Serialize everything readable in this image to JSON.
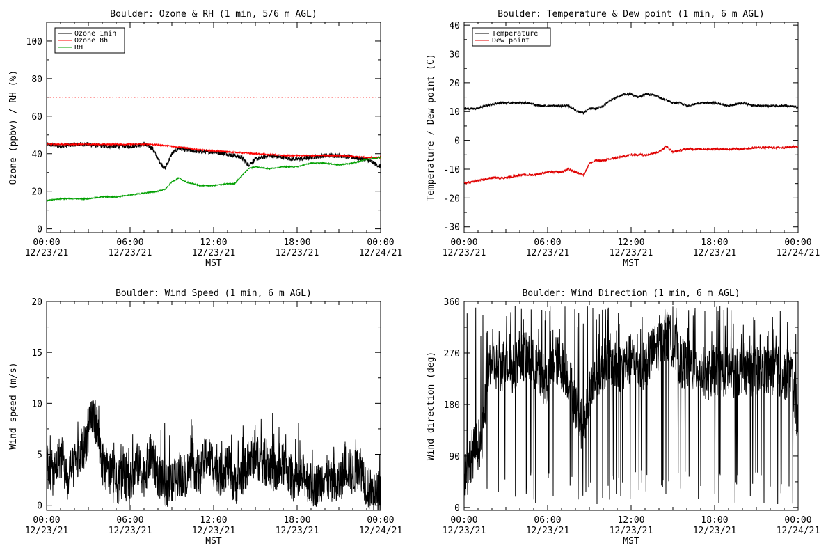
{
  "chart_data": [
    {
      "type": "line",
      "title": "Boulder: Ozone & RH (1 min, 5/6 m AGL)",
      "xlabel": "MST",
      "ylabel": "Ozone (ppbv) / RH (%)",
      "ylim": [
        -2,
        110
      ],
      "yticks": [
        0,
        20,
        40,
        60,
        80,
        100
      ],
      "xticks": [
        {
          "time": "00:00",
          "date": "12/23/21"
        },
        {
          "time": "06:00",
          "date": "12/23/21"
        },
        {
          "time": "12:00",
          "date": "12/23/21"
        },
        {
          "time": "18:00",
          "date": "12/23/21"
        },
        {
          "time": "00:00",
          "date": "12/24/21"
        }
      ],
      "xlim_hours": [
        0,
        24
      ],
      "legend_position": "top-left",
      "series": [
        {
          "name": "Ozone 1min",
          "color": "#000000",
          "x_hours": [
            0,
            1,
            2,
            3,
            4,
            5,
            6,
            7,
            7.6,
            8,
            8.5,
            9,
            9.5,
            10,
            11,
            12,
            13,
            14,
            14.5,
            15,
            16,
            17,
            18,
            19,
            20,
            21,
            22,
            23,
            23.5,
            24
          ],
          "values": [
            45,
            44,
            45,
            45,
            44,
            44,
            44,
            45,
            43,
            37,
            32,
            40,
            43,
            42,
            41,
            41,
            40,
            38,
            34,
            37,
            39,
            38,
            37,
            38,
            39,
            39,
            38,
            37,
            35,
            33
          ]
        },
        {
          "name": "Ozone 8h",
          "color": "#ff0000",
          "x_hours": [
            0,
            2,
            4,
            6,
            7.5,
            9,
            11,
            13,
            15,
            17,
            19,
            21,
            23,
            24
          ],
          "values": [
            45,
            45,
            45,
            45,
            45,
            44,
            42,
            41,
            40,
            39,
            39,
            39,
            38,
            38
          ]
        },
        {
          "name": "RH",
          "color": "#00a000",
          "x_hours": [
            0,
            1,
            2,
            3,
            4,
            5,
            6,
            7,
            8,
            8.5,
            9,
            9.5,
            10,
            10.5,
            11,
            12,
            13,
            13.5,
            14,
            14.5,
            15,
            16,
            17,
            18,
            19,
            20,
            21,
            22,
            23,
            24
          ],
          "values": [
            15,
            16,
            16,
            16,
            17,
            17,
            18,
            19,
            20,
            21,
            25,
            27,
            25,
            24,
            23,
            23,
            24,
            24,
            28,
            32,
            33,
            32,
            33,
            33,
            35,
            35,
            34,
            35,
            37,
            38
          ]
        },
        {
          "name": "",
          "color": "#ff0000",
          "style": "dotted",
          "x_hours": [
            0,
            24
          ],
          "values": [
            70,
            70
          ]
        }
      ]
    },
    {
      "type": "line",
      "title": "Boulder: Temperature & Dew point (1 min, 6 m AGL)",
      "xlabel": "MST",
      "ylabel": "Temperature / Dew point (C)",
      "ylim": [
        -32,
        41
      ],
      "yticks": [
        -30,
        -20,
        -10,
        0,
        10,
        20,
        30,
        40
      ],
      "xticks": [
        {
          "time": "00:00",
          "date": "12/23/21"
        },
        {
          "time": "06:00",
          "date": "12/23/21"
        },
        {
          "time": "12:00",
          "date": "12/23/21"
        },
        {
          "time": "18:00",
          "date": "12/23/21"
        },
        {
          "time": "00:00",
          "date": "12/24/21"
        }
      ],
      "xlim_hours": [
        0,
        24
      ],
      "legend_position": "top-left",
      "series": [
        {
          "name": "Temperature",
          "color": "#000000",
          "x_hours": [
            0,
            0.8,
            1.5,
            2.5,
            3.5,
            4.5,
            5.5,
            6.5,
            7,
            7.5,
            8.2,
            8.6,
            9,
            9.5,
            10,
            10.5,
            11,
            11.5,
            12,
            12.5,
            13,
            13.5,
            14,
            14.5,
            15,
            15.5,
            16,
            17,
            18,
            19,
            20,
            21,
            22,
            23,
            24
          ],
          "values": [
            11,
            11,
            12,
            13,
            13,
            13,
            12,
            12,
            12,
            12,
            10,
            9.5,
            11,
            11,
            12,
            14,
            15,
            16,
            16,
            15,
            16,
            16,
            15,
            14,
            13,
            13,
            12,
            13,
            13,
            12,
            13,
            12,
            12,
            12,
            11.5
          ]
        },
        {
          "name": "Dew point",
          "color": "#e00000",
          "x_hours": [
            0,
            1,
            2,
            3,
            4,
            5,
            6,
            7,
            7.5,
            8,
            8.6,
            9,
            9.5,
            10,
            11,
            12,
            13,
            14,
            14.5,
            15,
            16,
            17,
            18,
            19,
            20,
            21,
            22,
            23,
            24
          ],
          "values": [
            -15,
            -14,
            -13,
            -13,
            -12,
            -12,
            -11,
            -11,
            -10,
            -11,
            -12,
            -8,
            -7,
            -7,
            -6,
            -5,
            -5,
            -4,
            -2,
            -4,
            -3,
            -3,
            -3,
            -3,
            -3,
            -2.5,
            -2.5,
            -2.5,
            -2
          ]
        }
      ]
    },
    {
      "type": "line",
      "title": "Boulder: Wind Speed (1 min, 6 m AGL)",
      "xlabel": "MST",
      "ylabel": "Wind speed (m/s)",
      "ylim": [
        -0.5,
        20
      ],
      "yticks": [
        0,
        5,
        10,
        15,
        20
      ],
      "xticks": [
        {
          "time": "00:00",
          "date": "12/23/21"
        },
        {
          "time": "06:00",
          "date": "12/23/21"
        },
        {
          "time": "12:00",
          "date": "12/23/21"
        },
        {
          "time": "18:00",
          "date": "12/23/21"
        },
        {
          "time": "00:00",
          "date": "12/24/21"
        }
      ],
      "xlim_hours": [
        0,
        24
      ],
      "series": [
        {
          "name": "",
          "color": "#000000",
          "x_hours": [
            0,
            0.5,
            1,
            1.5,
            2,
            2.5,
            3,
            3.3,
            3.6,
            4,
            4.5,
            5,
            5.5,
            6,
            6.5,
            7,
            7.5,
            8,
            8.5,
            9,
            9.5,
            10,
            10.5,
            11,
            11.5,
            12,
            12.5,
            13,
            13.5,
            14,
            14.5,
            15,
            15.5,
            16,
            16.5,
            17,
            17.5,
            18,
            18.5,
            19,
            19.5,
            20,
            20.5,
            21,
            21.5,
            22,
            22.5,
            23,
            23.5,
            24
          ],
          "values": [
            4,
            3,
            5,
            2,
            4,
            5,
            7,
            9,
            8,
            4,
            3,
            2,
            3,
            2,
            4,
            3,
            5,
            3,
            2,
            2,
            3,
            3,
            4,
            3,
            5,
            4,
            3,
            4,
            2,
            3,
            4,
            5,
            4,
            4,
            3,
            4,
            3,
            2,
            3,
            2,
            2,
            3,
            2,
            2,
            4,
            3,
            4,
            2,
            1,
            1.5
          ]
        }
      ]
    },
    {
      "type": "line",
      "title": "Boulder: Wind Direction (1 min, 6 m AGL)",
      "xlabel": "MST",
      "ylabel": "Wind direction (deg)",
      "ylim": [
        -5,
        360
      ],
      "yticks": [
        0,
        90,
        180,
        270,
        360
      ],
      "xticks": [
        {
          "time": "00:00",
          "date": "12/23/21"
        },
        {
          "time": "06:00",
          "date": "12/23/21"
        },
        {
          "time": "12:00",
          "date": "12/23/21"
        },
        {
          "time": "18:00",
          "date": "12/23/21"
        },
        {
          "time": "00:00",
          "date": "12/24/21"
        }
      ],
      "xlim_hours": [
        0,
        24
      ],
      "series": [
        {
          "name": "",
          "color": "#000000",
          "x_hours": [
            0,
            0.5,
            1,
            1.3,
            1.6,
            1.9,
            2.2,
            2.6,
            3,
            3.5,
            4,
            4.5,
            5,
            5.5,
            6,
            6.5,
            7,
            7.5,
            8,
            8.5,
            9,
            9.5,
            10,
            10.5,
            11,
            11.5,
            12,
            12.5,
            13,
            13.5,
            14,
            14.5,
            15,
            15.5,
            16,
            16.5,
            17,
            17.5,
            18,
            18.5,
            19,
            19.5,
            20,
            20.5,
            21,
            21.5,
            22,
            22.5,
            23,
            23.5,
            24
          ],
          "values": [
            60,
            90,
            110,
            120,
            200,
            260,
            250,
            240,
            260,
            240,
            270,
            260,
            250,
            230,
            220,
            260,
            250,
            230,
            180,
            140,
            200,
            230,
            250,
            260,
            240,
            250,
            260,
            240,
            250,
            270,
            285,
            295,
            290,
            255,
            250,
            245,
            240,
            230,
            240,
            235,
            240,
            230,
            245,
            240,
            235,
            240,
            235,
            240,
            230,
            240,
            150
          ]
        }
      ]
    }
  ]
}
